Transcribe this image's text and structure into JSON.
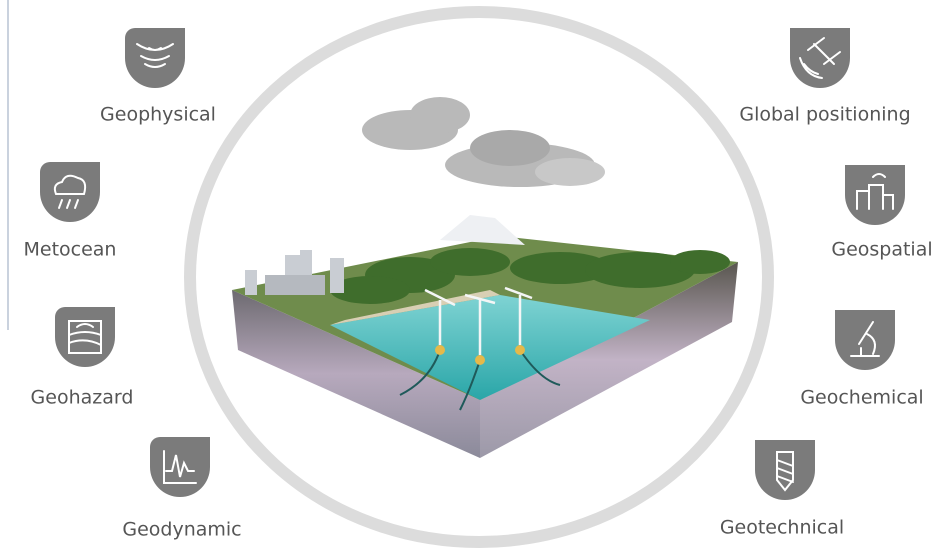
{
  "nodes": [
    {
      "label": "Geophysical"
    },
    {
      "label": "Metocean"
    },
    {
      "label": "Geohazard"
    },
    {
      "label": "Geodynamic"
    },
    {
      "label": "Global positioning"
    },
    {
      "label": "Geospatial"
    },
    {
      "label": "Geochemical"
    },
    {
      "label": "Geotechnical"
    }
  ]
}
